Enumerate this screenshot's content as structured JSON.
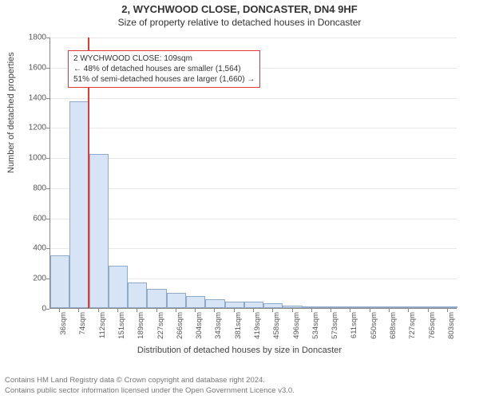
{
  "title_main": "2, WYCHWOOD CLOSE, DONCASTER, DN4 9HF",
  "title_sub": "Size of property relative to detached houses in Doncaster",
  "ylabel": "Number of detached properties",
  "xlabel": "Distribution of detached houses by size in Doncaster",
  "chart": {
    "type": "histogram",
    "background_color": "#ffffff",
    "grid_color": "#e8e8e8",
    "axis_color": "#888888",
    "bar_fill": "#d6e4f5",
    "bar_border": "#8fa9c9",
    "marker_color": "#e53935",
    "annotation_border": "#e53935",
    "ylim": [
      0,
      1800
    ],
    "ytick_step": 200,
    "x_labels": [
      "36sqm",
      "74sqm",
      "112sqm",
      "151sqm",
      "189sqm",
      "227sqm",
      "266sqm",
      "304sqm",
      "343sqm",
      "381sqm",
      "419sqm",
      "458sqm",
      "496sqm",
      "534sqm",
      "573sqm",
      "611sqm",
      "650sqm",
      "688sqm",
      "727sqm",
      "765sqm",
      "803sqm"
    ],
    "bars": [
      350,
      1370,
      1020,
      280,
      170,
      125,
      100,
      80,
      60,
      45,
      40,
      30,
      18,
      8,
      6,
      5,
      4,
      3,
      2,
      2,
      2
    ],
    "marker_bin_index": 1,
    "marker_fraction_in_bin": 0.95,
    "label_fontsize": 11,
    "tick_fontsize": 10
  },
  "annotation": {
    "line1": "2 WYCHWOOD CLOSE: 109sqm",
    "line2": "← 48% of detached houses are smaller (1,564)",
    "line3": "51% of semi-detached houses are larger (1,660) →"
  },
  "footer_line1": "Contains HM Land Registry data © Crown copyright and database right 2024.",
  "footer_line2": "Contains public sector information licensed under the Open Government Licence v3.0."
}
